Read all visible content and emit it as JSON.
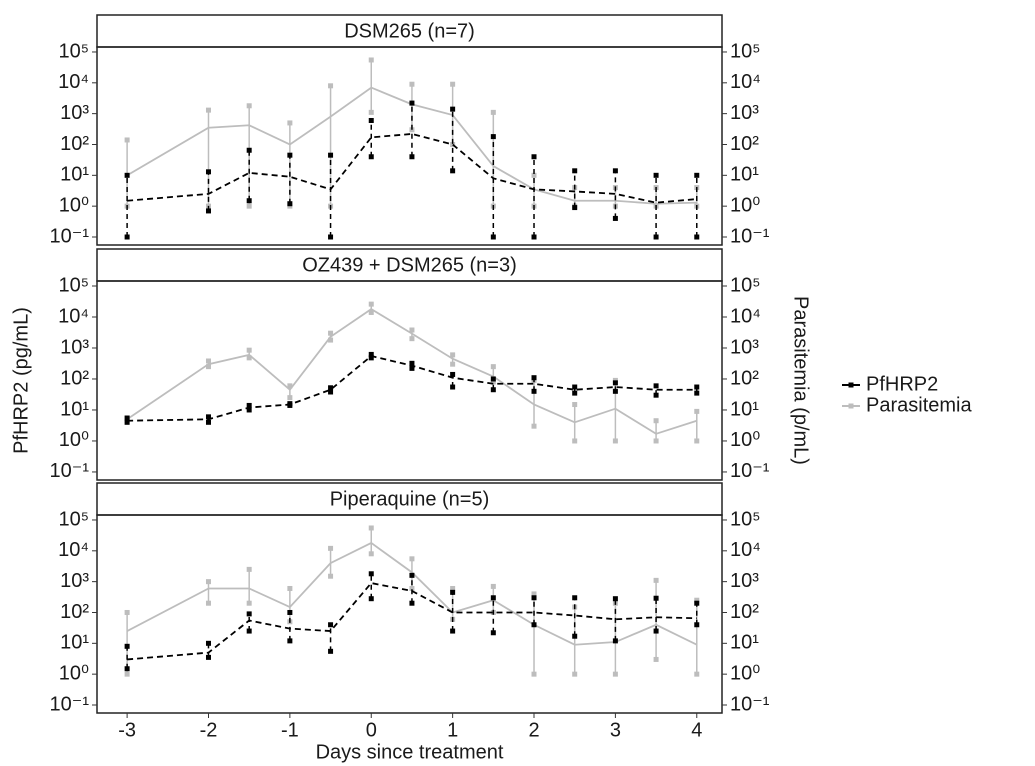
{
  "chart_data": [
    {
      "type": "line",
      "title": "DSM265 (n=7)",
      "log": true,
      "x": [
        -3,
        -2,
        -1.5,
        -1,
        -0.5,
        0,
        0.5,
        1,
        1.5,
        2,
        2.5,
        3,
        3.5,
        4
      ],
      "xlim": [
        -3.37,
        4.31
      ],
      "ylim": [
        0.055,
        145000
      ],
      "yticks": [
        {
          "value": 0.1,
          "label": "10⁻¹"
        },
        {
          "value": 1,
          "label": "10⁰"
        },
        {
          "value": 10,
          "label": "10¹"
        },
        {
          "value": 100,
          "label": "10²"
        },
        {
          "value": 1000,
          "label": "10³"
        },
        {
          "value": 10000,
          "label": "10⁴"
        },
        {
          "value": 100000,
          "label": "10⁵"
        }
      ],
      "y2lim": [
        0.055,
        145000
      ],
      "y2ticks": [
        {
          "value": 0.1,
          "label": "10⁻¹"
        },
        {
          "value": 1,
          "label": "10⁰"
        },
        {
          "value": 10,
          "label": "10¹"
        },
        {
          "value": 100,
          "label": "10²"
        },
        {
          "value": 1000,
          "label": "10³"
        },
        {
          "value": 10000,
          "label": "10⁴"
        },
        {
          "value": 100000,
          "label": "10⁵"
        }
      ],
      "series": [
        {
          "name": "PfHRP2",
          "color": "#000000",
          "dashed": true,
          "values": [
            1.5,
            2.5,
            12,
            9,
            3.5,
            170,
            220,
            100,
            8,
            3.5,
            3,
            2.5,
            1.3,
            1.7
          ],
          "error_low": [
            0.1,
            0.7,
            1.5,
            1.2,
            0.1,
            40,
            40,
            14,
            0.1,
            0.1,
            0.9,
            0.4,
            0.1,
            0.1
          ],
          "error_high": [
            10,
            13,
            65,
            45,
            45,
            600,
            2200,
            1400,
            180,
            40,
            14,
            14,
            10,
            10
          ]
        },
        {
          "name": "Parasitemia",
          "color": "#bdbdbd",
          "dashed": false,
          "axis": "y2",
          "values": [
            10,
            350,
            420,
            100,
            800,
            7000,
            2000,
            900,
            20,
            3.5,
            1.5,
            1.5,
            1.2,
            1.3
          ],
          "error_low": [
            1,
            1,
            1,
            1,
            1,
            1100,
            300,
            100,
            1,
            1,
            1,
            1,
            1,
            1
          ],
          "error_high": [
            140,
            1300,
            1800,
            500,
            8000,
            55000,
            9000,
            9000,
            1100,
            10,
            4,
            4,
            4,
            4
          ]
        }
      ]
    },
    {
      "type": "line",
      "title": "OZ439 + DSM265 (n=3)",
      "log": true,
      "ylabel": "PfHRP2 (pg/mL)",
      "y2label": "Parasitemia (p/mL)",
      "x": [
        -3,
        -2,
        -1.5,
        -1,
        -0.5,
        0,
        0.5,
        1,
        1.5,
        2,
        2.5,
        3,
        3.5,
        4
      ],
      "xlim": [
        -3.37,
        4.31
      ],
      "ylim": [
        0.055,
        145000
      ],
      "yticks": [
        {
          "value": 0.1,
          "label": "10⁻¹"
        },
        {
          "value": 1,
          "label": "10⁰"
        },
        {
          "value": 10,
          "label": "10¹"
        },
        {
          "value": 100,
          "label": "10²"
        },
        {
          "value": 1000,
          "label": "10³"
        },
        {
          "value": 10000,
          "label": "10⁴"
        },
        {
          "value": 100000,
          "label": "10⁵"
        }
      ],
      "y2lim": [
        0.055,
        145000
      ],
      "y2ticks": [
        {
          "value": 0.1,
          "label": "10⁻¹"
        },
        {
          "value": 1,
          "label": "10⁰"
        },
        {
          "value": 10,
          "label": "10¹"
        },
        {
          "value": 100,
          "label": "10²"
        },
        {
          "value": 1000,
          "label": "10³"
        },
        {
          "value": 10000,
          "label": "10⁴"
        },
        {
          "value": 100000,
          "label": "10⁵"
        }
      ],
      "series": [
        {
          "color": "#000000",
          "dashed": true,
          "values": [
            4.5,
            5,
            12,
            15,
            45,
            550,
            270,
            110,
            70,
            70,
            45,
            55,
            45,
            45
          ],
          "error_low": [
            4,
            4,
            10,
            14,
            38,
            480,
            220,
            55,
            45,
            40,
            35,
            40,
            30,
            35
          ],
          "error_high": [
            5.5,
            6,
            14,
            16,
            52,
            620,
            320,
            140,
            100,
            110,
            55,
            75,
            60,
            55
          ]
        },
        {
          "color": "#bdbdbd",
          "dashed": false,
          "axis": "y2",
          "values": [
            5,
            300,
            600,
            45,
            2300,
            18000,
            2900,
            450,
            120,
            15,
            4,
            11,
            1.7,
            4.5
          ],
          "error_low": [
            4.5,
            250,
            480,
            25,
            1800,
            14000,
            2000,
            300,
            80,
            3,
            1,
            1,
            1,
            1
          ],
          "error_high": [
            5.5,
            380,
            850,
            60,
            3000,
            26000,
            3800,
            600,
            250,
            90,
            15,
            90,
            4.5,
            9
          ]
        }
      ]
    },
    {
      "type": "line",
      "title": "Piperaquine (n=5)",
      "log": true,
      "xlabel": "Days since treatment",
      "x": [
        -3,
        -2,
        -1.5,
        -1,
        -0.5,
        0,
        0.5,
        1,
        1.5,
        2,
        2.5,
        3,
        3.5,
        4
      ],
      "xlim": [
        -3.37,
        4.31
      ],
      "xticks": [
        -3,
        -2,
        -1,
        0,
        1,
        2,
        3,
        4
      ],
      "ylim": [
        0.055,
        145000
      ],
      "yticks": [
        {
          "value": 0.1,
          "label": "10⁻¹"
        },
        {
          "value": 1,
          "label": "10⁰"
        },
        {
          "value": 10,
          "label": "10¹"
        },
        {
          "value": 100,
          "label": "10²"
        },
        {
          "value": 1000,
          "label": "10³"
        },
        {
          "value": 10000,
          "label": "10⁴"
        },
        {
          "value": 100000,
          "label": "10⁵"
        }
      ],
      "y2lim": [
        0.055,
        145000
      ],
      "y2ticks": [
        {
          "value": 0.1,
          "label": "10⁻¹"
        },
        {
          "value": 1,
          "label": "10⁰"
        },
        {
          "value": 10,
          "label": "10¹"
        },
        {
          "value": 100,
          "label": "10²"
        },
        {
          "value": 1000,
          "label": "10³"
        },
        {
          "value": 10000,
          "label": "10⁴"
        },
        {
          "value": 100000,
          "label": "10⁵"
        }
      ],
      "series": [
        {
          "color": "#000000",
          "dashed": true,
          "values": [
            3,
            5,
            55,
            30,
            25,
            900,
            500,
            100,
            100,
            100,
            80,
            60,
            70,
            65
          ],
          "error_low": [
            1.5,
            3.5,
            25,
            12,
            5.5,
            280,
            200,
            25,
            22,
            40,
            17,
            12,
            25,
            40
          ],
          "error_high": [
            8,
            10,
            90,
            100,
            40,
            1800,
            1600,
            450,
            300,
            300,
            300,
            280,
            290,
            200
          ]
        },
        {
          "color": "#bdbdbd",
          "dashed": false,
          "axis": "y2",
          "values": [
            25,
            600,
            600,
            150,
            4000,
            18000,
            2000,
            100,
            250,
            40,
            9,
            11,
            40,
            9
          ],
          "error_low": [
            1,
            200,
            200,
            50,
            1500,
            8000,
            600,
            60,
            100,
            1,
            1,
            1,
            3,
            1
          ],
          "error_high": [
            100,
            1000,
            2500,
            600,
            12000,
            55000,
            5500,
            600,
            700,
            400,
            150,
            200,
            1100,
            250
          ]
        }
      ]
    }
  ]
}
